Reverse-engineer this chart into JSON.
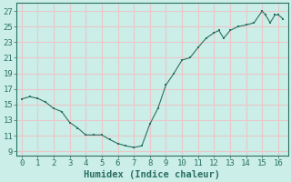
{
  "x": [
    0,
    0.5,
    1,
    1.5,
    2,
    2.5,
    3,
    3.5,
    4,
    4.5,
    5,
    5.5,
    6,
    6.5,
    7,
    7.5,
    8,
    8.5,
    9,
    9.5,
    10,
    10.5,
    11,
    11.5,
    12,
    12.3,
    12.6,
    13,
    13.5,
    14,
    14.5,
    15,
    15.2,
    15.5,
    15.8,
    16,
    16.3
  ],
  "y": [
    15.7,
    16.0,
    15.8,
    15.3,
    14.5,
    14.1,
    12.7,
    12.0,
    11.1,
    11.1,
    11.1,
    10.5,
    10.0,
    9.7,
    9.5,
    9.7,
    12.5,
    14.5,
    17.5,
    19.0,
    20.7,
    21.0,
    22.3,
    23.5,
    24.2,
    24.5,
    23.5,
    24.5,
    25.0,
    25.2,
    25.5,
    27.0,
    26.5,
    25.5,
    26.5,
    26.5,
    26.0
  ],
  "xlabel": "Humidex (Indice chaleur)",
  "xlim": [
    -0.3,
    16.6
  ],
  "ylim": [
    8.5,
    28.0
  ],
  "xticks": [
    0,
    1,
    2,
    3,
    4,
    5,
    6,
    7,
    8,
    9,
    10,
    11,
    12,
    13,
    14,
    15,
    16
  ],
  "yticks": [
    9,
    11,
    13,
    15,
    17,
    19,
    21,
    23,
    25,
    27
  ],
  "line_color": "#2a7060",
  "marker_color": "#2a7060",
  "bg_color": "#cceee8",
  "grid_color": "#e8c8c8",
  "spine_color": "#2a7060",
  "label_fontsize": 7.5,
  "tick_fontsize": 6.5
}
